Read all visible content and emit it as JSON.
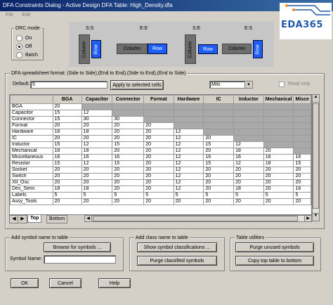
{
  "window": {
    "title": "DFA Constraints Dialog - Active Design DFA Table: High_Density.dfa"
  },
  "menu": [
    "File",
    "Edit"
  ],
  "logo": {
    "text": "EDA365"
  },
  "drc": {
    "label": "DRC mode",
    "options": [
      "On",
      "Off",
      "Batch"
    ],
    "selected": "Off"
  },
  "diagram": {
    "labels": [
      "S:S",
      "E:E",
      "S:E",
      "E:S"
    ],
    "column": "Column",
    "row": "Row"
  },
  "spreadsheet": {
    "label": "DFA spreadsheet format: (Side to Side),(End to End),(Side to End),(End to Side)",
    "default_label": "Default:",
    "default_value": "5",
    "apply_button": "Apply to selected cells",
    "units": "Mils",
    "read_only": "Read only",
    "columns": [
      "BGA",
      "Capacitor",
      "Connector",
      "Format",
      "Hardware",
      "IC",
      "Inductor",
      "Mechanical",
      "Misce"
    ],
    "rows": [
      {
        "name": "BGA",
        "values": [
          "20",
          "",
          "",
          "",
          "",
          "",
          "",
          "",
          ""
        ]
      },
      {
        "name": "Capacitor",
        "values": [
          "15",
          "12",
          "",
          "",
          "",
          "",
          "",
          "",
          ""
        ]
      },
      {
        "name": "Connector",
        "values": [
          "15",
          "30",
          "30",
          "",
          "",
          "",
          "",
          "",
          ""
        ]
      },
      {
        "name": "Format",
        "values": [
          "20",
          "20",
          "20",
          "20",
          "",
          "",
          "",
          "",
          ""
        ]
      },
      {
        "name": "Hardware",
        "values": [
          "18",
          "18",
          "20",
          "20",
          "12",
          "",
          "",
          "",
          ""
        ]
      },
      {
        "name": "IC",
        "values": [
          "20",
          "20",
          "20",
          "20",
          "12",
          "20",
          "",
          "",
          ""
        ]
      },
      {
        "name": "Inductor",
        "values": [
          "15",
          "12",
          "15",
          "20",
          "12",
          "15",
          "12",
          "",
          ""
        ]
      },
      {
        "name": "Mechanical",
        "values": [
          "18",
          "18",
          "20",
          "20",
          "12",
          "20",
          "18",
          "20",
          ""
        ]
      },
      {
        "name": "Miscellaneous",
        "values": [
          "16",
          "16",
          "16",
          "20",
          "12",
          "16",
          "16",
          "16",
          "16"
        ]
      },
      {
        "name": "Resistor",
        "values": [
          "15",
          "12",
          "15",
          "20",
          "12",
          "15",
          "12",
          "18",
          "15"
        ]
      },
      {
        "name": "Socket",
        "values": [
          "20",
          "20",
          "20",
          "20",
          "12",
          "20",
          "20",
          "20",
          "20"
        ]
      },
      {
        "name": "Switch",
        "values": [
          "20",
          "20",
          "20",
          "20",
          "12",
          "20",
          "20",
          "20",
          "20"
        ]
      },
      {
        "name": "Xtl_Osc",
        "values": [
          "20",
          "20",
          "20",
          "20",
          "12",
          "20",
          "20",
          "20",
          "20"
        ]
      },
      {
        "name": "Des_Semi",
        "values": [
          "18",
          "18",
          "20",
          "20",
          "12",
          "20",
          "18",
          "20",
          "16"
        ]
      },
      {
        "name": "Labels",
        "values": [
          "5",
          "5",
          "5",
          "5",
          "5",
          "5",
          "5",
          "5",
          "5"
        ]
      },
      {
        "name": "Assy_Tools",
        "values": [
          "20",
          "20",
          "20",
          "20",
          "20",
          "20",
          "20",
          "20",
          "20"
        ]
      }
    ],
    "tabs": [
      "Top",
      "Bottom"
    ],
    "active_tab": "Top"
  },
  "symbol_group": {
    "label": "Add symbol name to table",
    "browse_button": "Browse for symbols ...",
    "symbol_name_label": "Symbol Name:",
    "symbol_name_value": ""
  },
  "class_group": {
    "label": "Add class name to table",
    "show_button": "Show symbol classifications ...",
    "purge_button": "Purge classified symbols"
  },
  "utilities_group": {
    "label": "Table utilities",
    "purge_unused_button": "Purge unused symbols",
    "copy_button": "Copy top table to bottom"
  },
  "footer": {
    "ok": "OK",
    "cancel": "Cancel",
    "help": "Help"
  }
}
